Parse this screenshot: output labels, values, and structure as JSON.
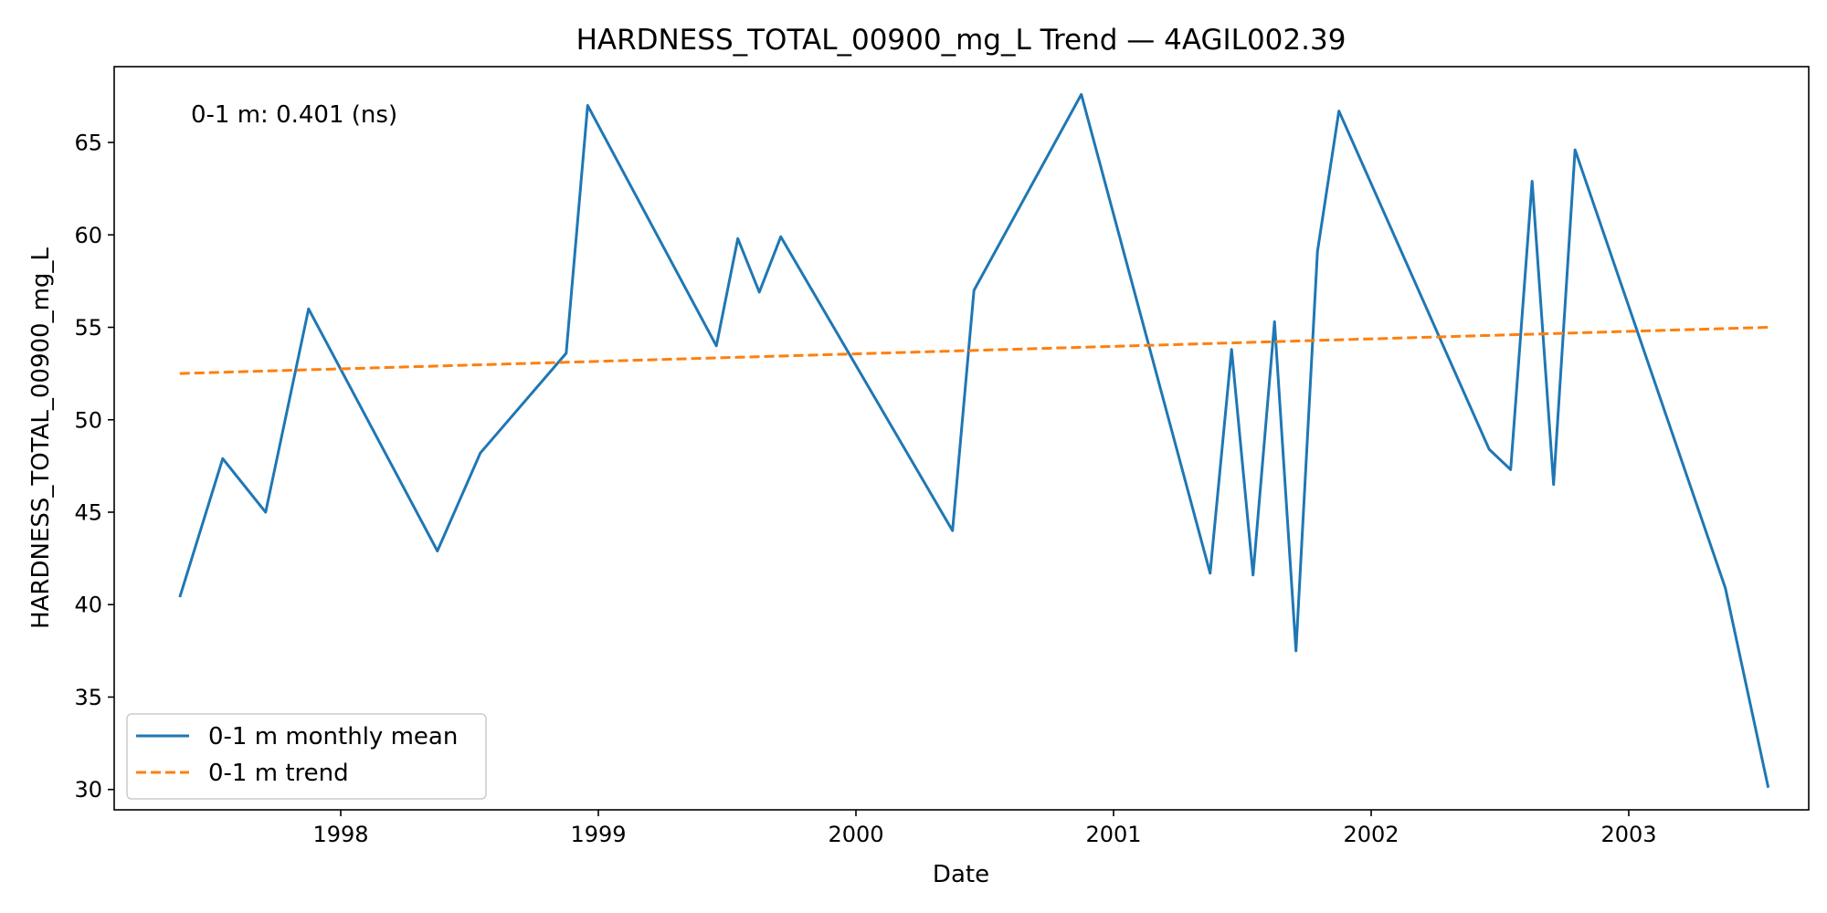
{
  "chart_data": {
    "type": "line",
    "title": "HARDNESS_TOTAL_00900_mg_L Trend — 4AGIL002.39",
    "xlabel": "Date",
    "ylabel": "HARDNESS_TOTAL_00900_mg_L",
    "annotation": "0-1 m: 0.401 (ns)",
    "x_ticks": [
      "1998",
      "1999",
      "2000",
      "2001",
      "2002",
      "2003"
    ],
    "y_ticks": [
      "30",
      "35",
      "40",
      "45",
      "50",
      "55",
      "60",
      "65"
    ],
    "ylim": [
      28.9,
      69.1
    ],
    "xlim": [
      "1997-02-14",
      "2003-09-13"
    ],
    "grid": false,
    "legend_position": "lower-left",
    "series": [
      {
        "name": "0-1 m monthly mean",
        "color": "#1f77b4",
        "style": "solid",
        "points": [
          [
            "1997-05",
            40.4
          ],
          [
            "1997-07",
            47.9
          ],
          [
            "1997-09",
            45.0
          ],
          [
            "1997-11",
            56.0
          ],
          [
            "1998-05",
            42.9
          ],
          [
            "1998-07",
            48.2
          ],
          [
            "1998-11",
            53.6
          ],
          [
            "1998-12",
            67.0
          ],
          [
            "1999-06",
            54.0
          ],
          [
            "1999-07",
            59.8
          ],
          [
            "1999-08",
            56.9
          ],
          [
            "1999-09",
            59.9
          ],
          [
            "2000-05",
            44.0
          ],
          [
            "2000-06",
            57.0
          ],
          [
            "2000-11",
            67.6
          ],
          [
            "2001-05",
            41.7
          ],
          [
            "2001-06",
            53.8
          ],
          [
            "2001-07",
            41.6
          ],
          [
            "2001-08",
            55.3
          ],
          [
            "2001-09",
            37.5
          ],
          [
            "2001-10",
            59.1
          ],
          [
            "2001-11",
            66.7
          ],
          [
            "2002-06",
            48.4
          ],
          [
            "2002-07",
            47.3
          ],
          [
            "2002-08",
            62.9
          ],
          [
            "2002-09",
            46.5
          ],
          [
            "2002-10",
            64.6
          ],
          [
            "2003-05",
            40.9
          ],
          [
            "2003-07",
            30.1
          ]
        ]
      },
      {
        "name": "0-1 m trend",
        "color": "#ff7f0e",
        "style": "dashed",
        "points": [
          [
            "1997-05",
            52.5
          ],
          [
            "2003-07",
            55.0
          ]
        ]
      }
    ]
  }
}
